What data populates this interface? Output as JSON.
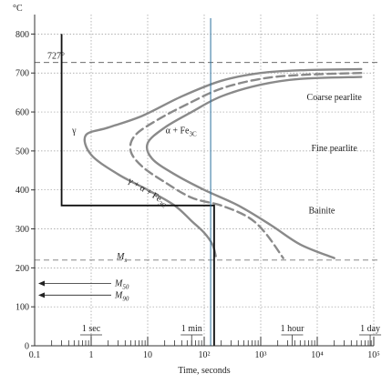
{
  "chart_data": {
    "type": "line",
    "ylabel": "°C",
    "xlabel": "Time, seconds",
    "xscale": "log",
    "xlim": [
      0.1,
      100000
    ],
    "ylim": [
      0,
      850
    ],
    "grid": true,
    "x_ticks": [
      {
        "value": 0.1,
        "label": "0.1"
      },
      {
        "value": 1,
        "label": "1"
      },
      {
        "value": 10,
        "label": "10"
      },
      {
        "value": 100,
        "label": "10²"
      },
      {
        "value": 1000,
        "label": "10³"
      },
      {
        "value": 10000,
        "label": "10⁴"
      },
      {
        "value": 100000,
        "label": "10⁵"
      }
    ],
    "y_ticks": [
      0,
      100,
      200,
      300,
      400,
      500,
      600,
      700,
      800
    ],
    "time_marks": [
      {
        "value": 1,
        "label": "1 sec"
      },
      {
        "value": 60,
        "label": "1 min"
      },
      {
        "value": 3600,
        "label": "1 hour"
      },
      {
        "value": 86400,
        "label": "1 day"
      }
    ],
    "reference_lines": [
      {
        "y": 727,
        "label": "727°"
      },
      {
        "y": 220,
        "label": "Ms"
      }
    ],
    "martensite_levels": [
      {
        "y": 160,
        "label": "M50"
      },
      {
        "y": 130,
        "label": "M90"
      }
    ],
    "curves": [
      {
        "style": "solid",
        "points": [
          [
            60000,
            710
          ],
          [
            5000,
            707
          ],
          [
            1000,
            700
          ],
          [
            200,
            680
          ],
          [
            40,
            640
          ],
          [
            8,
            590
          ],
          [
            2,
            560
          ],
          [
            0.8,
            540
          ],
          [
            1,
            490
          ],
          [
            3,
            440
          ],
          [
            10,
            400
          ],
          [
            30,
            360
          ],
          [
            60,
            320
          ],
          [
            100,
            290
          ],
          [
            140,
            260
          ],
          [
            160,
            230
          ]
        ]
      },
      {
        "style": "dashed",
        "points": [
          [
            60000,
            700
          ],
          [
            5000,
            695
          ],
          [
            1000,
            685
          ],
          [
            200,
            660
          ],
          [
            50,
            620
          ],
          [
            15,
            580
          ],
          [
            6,
            540
          ],
          [
            5,
            500
          ],
          [
            8,
            460
          ],
          [
            20,
            420
          ],
          [
            60,
            380
          ],
          [
            200,
            360
          ],
          [
            600,
            330
          ],
          [
            1200,
            290
          ],
          [
            2500,
            225
          ]
        ]
      },
      {
        "style": "solid",
        "points": [
          [
            60000,
            690
          ],
          [
            5000,
            685
          ],
          [
            1000,
            670
          ],
          [
            200,
            640
          ],
          [
            60,
            600
          ],
          [
            20,
            560
          ],
          [
            10,
            520
          ],
          [
            12,
            480
          ],
          [
            30,
            440
          ],
          [
            100,
            400
          ],
          [
            400,
            360
          ],
          [
            1500,
            310
          ],
          [
            5000,
            260
          ],
          [
            20000,
            225
          ]
        ]
      }
    ],
    "cooling_path": [
      [
        0.3,
        800
      ],
      [
        0.3,
        360
      ],
      [
        30,
        360
      ],
      [
        150,
        360
      ],
      [
        150,
        0
      ]
    ],
    "cooling_line": {
      "x": 130
    },
    "regions": [
      {
        "label": "γ",
        "x": 0.5,
        "y": 545
      },
      {
        "label": "α + Fe3C",
        "x": 30,
        "y": 545
      },
      {
        "label": "γ + α + Fe3C",
        "x": 10,
        "y": 420
      },
      {
        "label": "Coarse pearlite",
        "x": 20000,
        "y": 630
      },
      {
        "label": "Fine pearlite",
        "x": 20000,
        "y": 500
      },
      {
        "label": "Bainite",
        "x": 12000,
        "y": 340
      }
    ]
  }
}
